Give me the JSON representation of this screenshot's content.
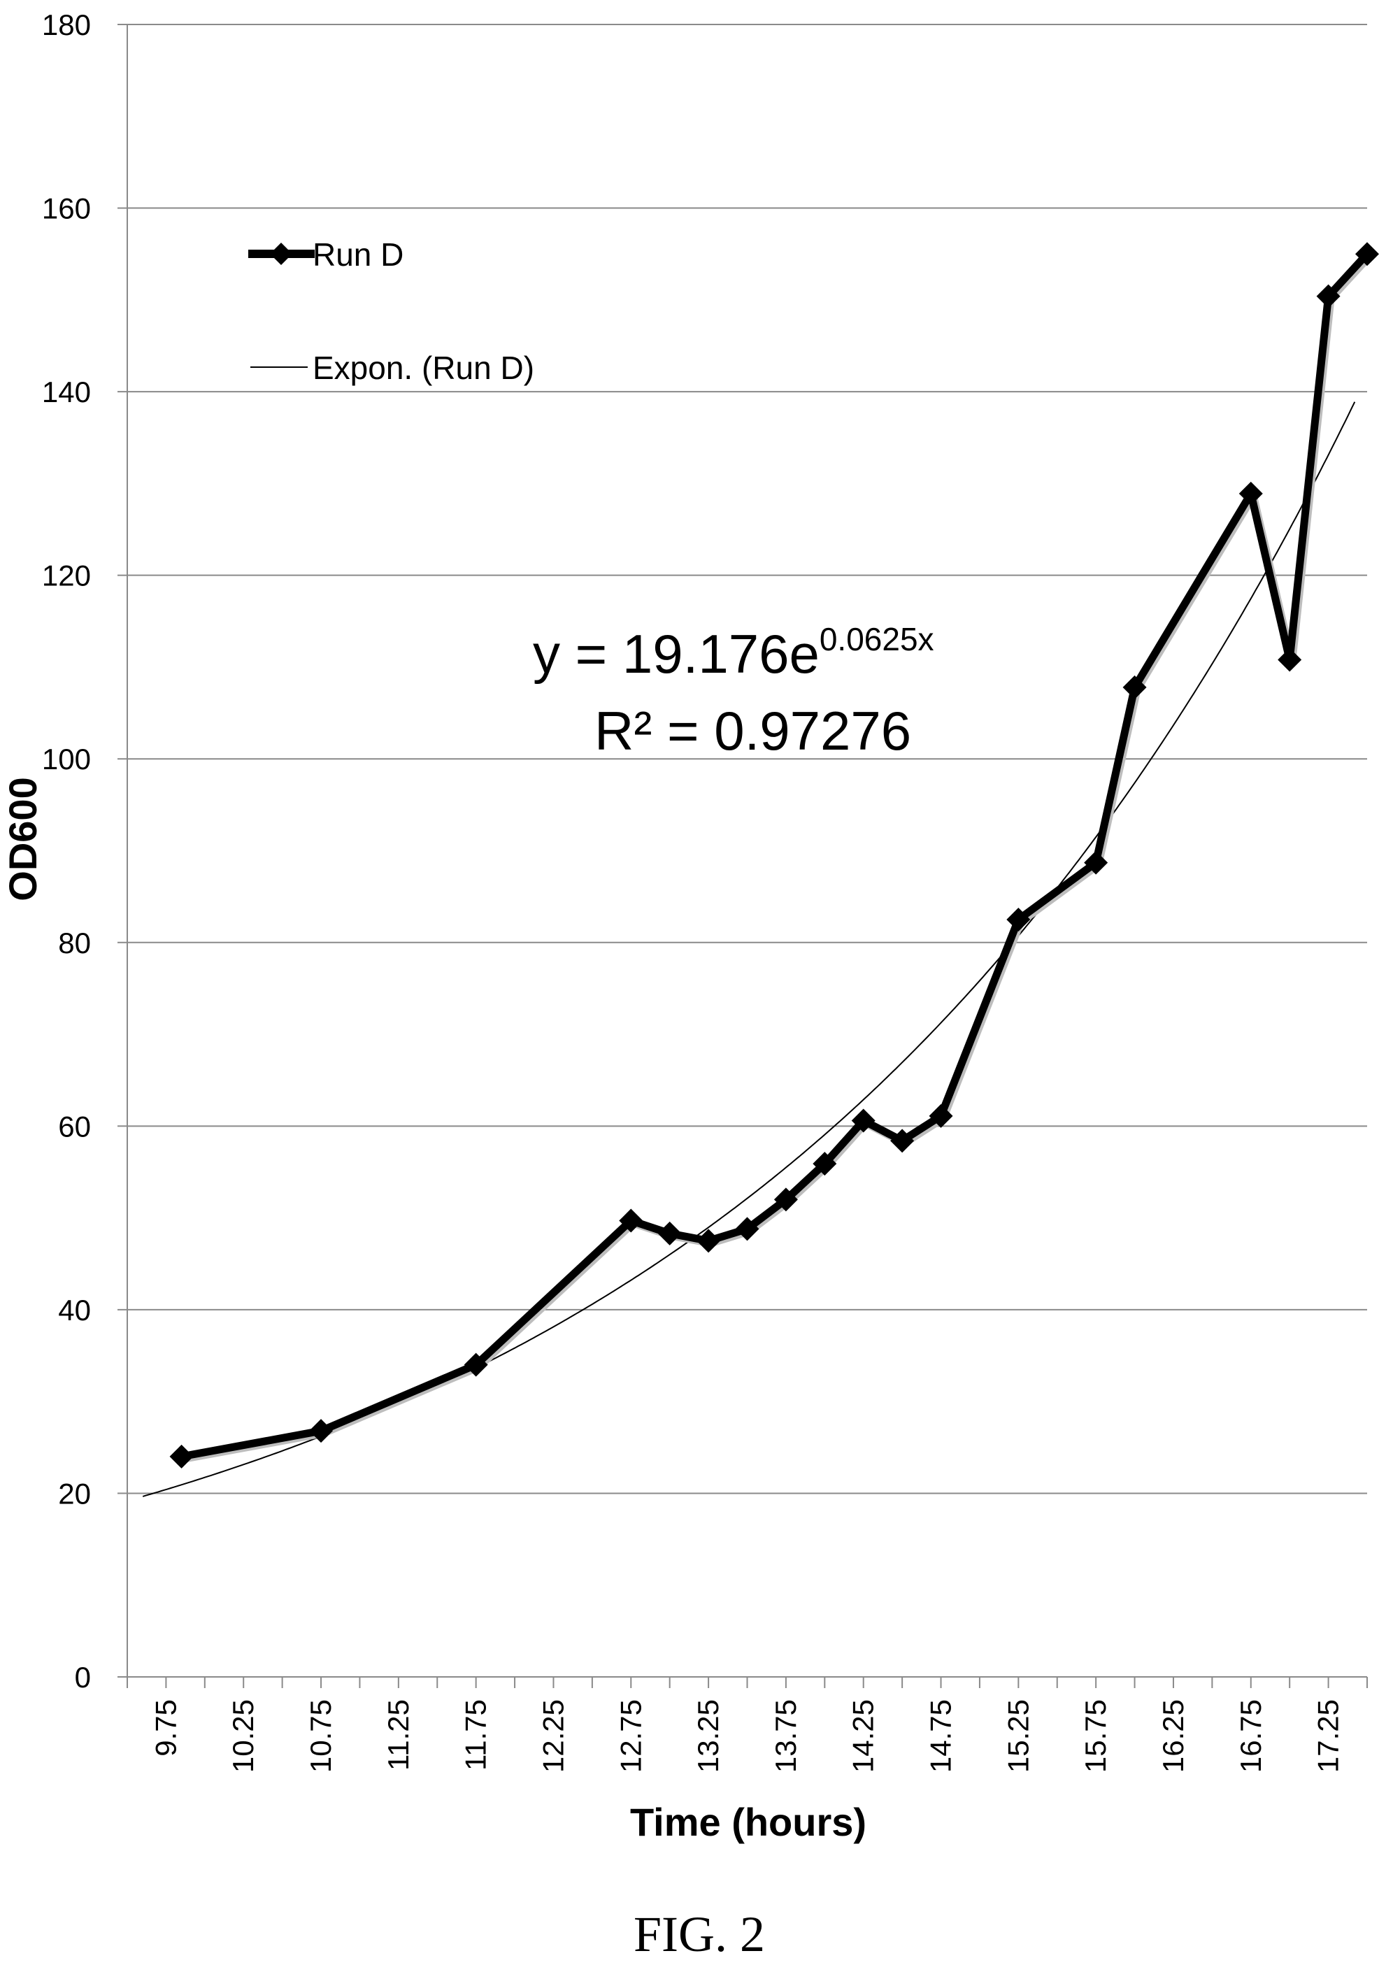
{
  "figure_caption": "FIG. 2",
  "chart_data": {
    "type": "line",
    "xlabel": "Time (hours)",
    "ylabel": "OD600",
    "xlim": [
      9.5,
      17.5
    ],
    "ylim": [
      0,
      180
    ],
    "x_ticks": [
      "9.75",
      "10.25",
      "10.75",
      "11.25",
      "11.75",
      "12.25",
      "12.75",
      "13.25",
      "13.75",
      "14.25",
      "14.75",
      "15.25",
      "15.75",
      "16.25",
      "16.75",
      "17.25"
    ],
    "y_ticks": [
      "0",
      "20",
      "40",
      "60",
      "80",
      "100",
      "120",
      "140",
      "160",
      "180"
    ],
    "grid": "horizontal",
    "legend_position": "top-left",
    "series": [
      {
        "name": "Run D",
        "marker": "diamond",
        "color": "#000000",
        "points": [
          {
            "x": 9.85,
            "y": 24
          },
          {
            "x": 10.75,
            "y": 26.8
          },
          {
            "x": 11.75,
            "y": 34
          },
          {
            "x": 12.75,
            "y": 49.7
          },
          {
            "x": 13.0,
            "y": 48.3
          },
          {
            "x": 13.25,
            "y": 47.5
          },
          {
            "x": 13.5,
            "y": 48.8
          },
          {
            "x": 13.75,
            "y": 52
          },
          {
            "x": 14.0,
            "y": 55.9
          },
          {
            "x": 14.25,
            "y": 60.6
          },
          {
            "x": 14.5,
            "y": 58.4
          },
          {
            "x": 14.75,
            "y": 61.1
          },
          {
            "x": 15.25,
            "y": 82.5
          },
          {
            "x": 15.75,
            "y": 88.7
          },
          {
            "x": 16.0,
            "y": 107.8
          },
          {
            "x": 16.75,
            "y": 128.9
          },
          {
            "x": 17.0,
            "y": 110.8
          },
          {
            "x": 17.25,
            "y": 150.4
          },
          {
            "x": 17.5,
            "y": 155
          }
        ]
      }
    ],
    "trendline": {
      "name": "Expon. (Run D)",
      "type": "exponential",
      "a": 19.176,
      "b": 0.0625,
      "color": "#000000",
      "equation_text": "y = 19.176e",
      "equation_exponent": "0.0625x",
      "r2_text": "R² = 0.97276"
    }
  }
}
